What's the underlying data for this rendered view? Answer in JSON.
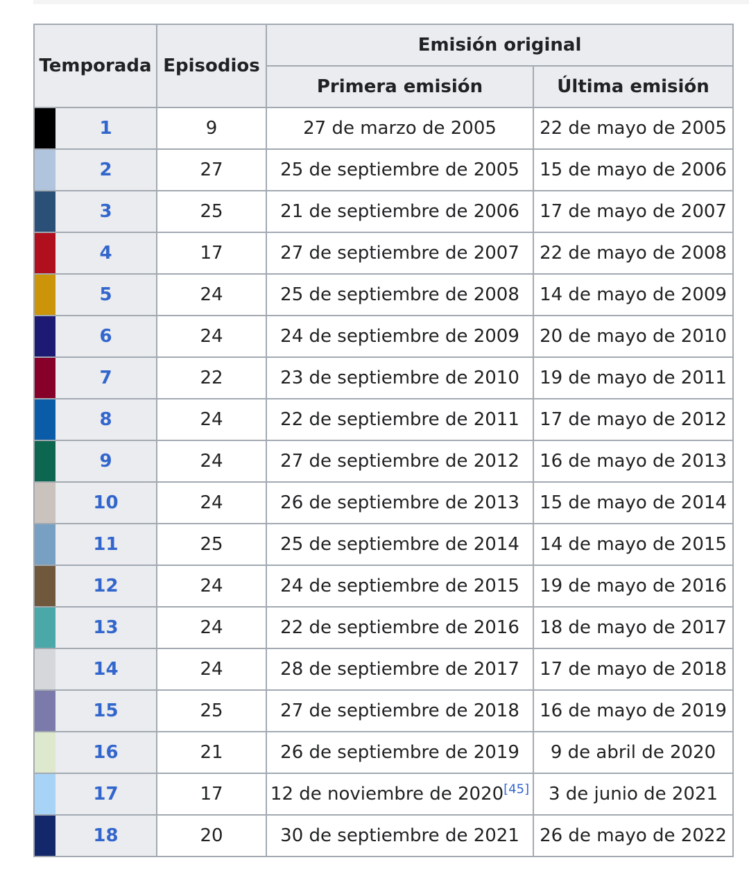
{
  "header": {
    "season": "Temporada",
    "episodes": "Episodios",
    "original_airing": "Emisión original",
    "first_aired": "Primera emisión",
    "last_aired": "Última emisión"
  },
  "seasons": [
    {
      "season": "1",
      "episodes": "9",
      "first_aired": "27 de marzo de 2005",
      "first_ref": "",
      "last_aired": "22 de mayo de 2005",
      "color": "#000000"
    },
    {
      "season": "2",
      "episodes": "27",
      "first_aired": "25 de septiembre de 2005",
      "first_ref": "",
      "last_aired": "15 de mayo de 2006",
      "color": "#b0c4de"
    },
    {
      "season": "3",
      "episodes": "25",
      "first_aired": "21 de septiembre de 2006",
      "first_ref": "",
      "last_aired": "17 de mayo de 2007",
      "color": "#2a5078"
    },
    {
      "season": "4",
      "episodes": "17",
      "first_aired": "27 de septiembre de 2007",
      "first_ref": "",
      "last_aired": "22 de mayo de 2008",
      "color": "#b0101e"
    },
    {
      "season": "5",
      "episodes": "24",
      "first_aired": "25 de septiembre de 2008",
      "first_ref": "",
      "last_aired": "14 de mayo de 2009",
      "color": "#cc9408"
    },
    {
      "season": "6",
      "episodes": "24",
      "first_aired": "24 de septiembre de 2009",
      "first_ref": "",
      "last_aired": "20 de mayo de 2010",
      "color": "#1c1a72"
    },
    {
      "season": "7",
      "episodes": "22",
      "first_aired": "23 de septiembre de 2010",
      "first_ref": "",
      "last_aired": "19 de mayo de 2011",
      "color": "#86002a"
    },
    {
      "season": "8",
      "episodes": "24",
      "first_aired": "22 de septiembre de 2011",
      "first_ref": "",
      "last_aired": "17 de mayo de 2012",
      "color": "#0a5ca8"
    },
    {
      "season": "9",
      "episodes": "24",
      "first_aired": "27 de septiembre de 2012",
      "first_ref": "",
      "last_aired": "16 de mayo de 2013",
      "color": "#0c6650"
    },
    {
      "season": "10",
      "episodes": "24",
      "first_aired": "26 de septiembre de 2013",
      "first_ref": "",
      "last_aired": "15 de mayo de 2014",
      "color": "#cac3bd"
    },
    {
      "season": "11",
      "episodes": "25",
      "first_aired": "25 de septiembre de 2014",
      "first_ref": "",
      "last_aired": "14 de mayo de 2015",
      "color": "#78a0c2"
    },
    {
      "season": "12",
      "episodes": "24",
      "first_aired": "24 de septiembre de 2015",
      "first_ref": "",
      "last_aired": "19 de mayo de 2016",
      "color": "#6f583c"
    },
    {
      "season": "13",
      "episodes": "24",
      "first_aired": "22 de septiembre de 2016",
      "first_ref": "",
      "last_aired": "18 de mayo de 2017",
      "color": "#4aa8a8"
    },
    {
      "season": "14",
      "episodes": "24",
      "first_aired": "28 de septiembre de 2017",
      "first_ref": "",
      "last_aired": "17 de mayo de 2018",
      "color": "#d6d7da"
    },
    {
      "season": "15",
      "episodes": "25",
      "first_aired": "27 de septiembre de 2018",
      "first_ref": "",
      "last_aired": "16 de mayo de 2019",
      "color": "#7b7aaa"
    },
    {
      "season": "16",
      "episodes": "21",
      "first_aired": "26 de septiembre de 2019",
      "first_ref": "",
      "last_aired": "9 de abril de 2020",
      "color": "#dde8cc"
    },
    {
      "season": "17",
      "episodes": "17",
      "first_aired": "12 de noviembre de 2020",
      "first_ref": "[45]",
      "last_aired": "3 de junio de 2021",
      "color": "#a6d3f6"
    },
    {
      "season": "18",
      "episodes": "20",
      "first_aired": "30 de septiembre de 2021",
      "first_ref": "",
      "last_aired": "26 de mayo de 2022",
      "color": "#13286a"
    }
  ]
}
